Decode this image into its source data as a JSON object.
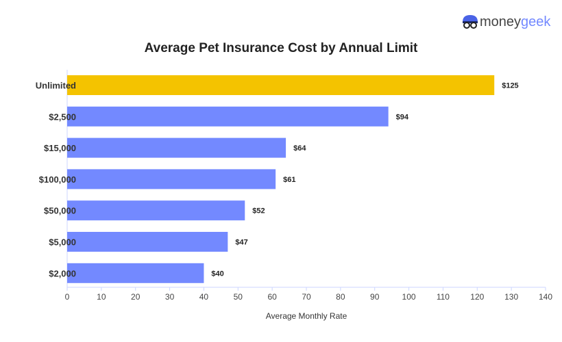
{
  "logo": {
    "part1": "money",
    "part2": "geek"
  },
  "chart_data": {
    "type": "bar",
    "orientation": "horizontal",
    "title": "Average Pet Insurance Cost by Annual Limit",
    "xlabel": "Average Monthly Rate",
    "ylabel": "",
    "categories": [
      "Unlimited",
      "$2,500",
      "$15,000",
      "$100,000",
      "$50,000",
      "$5,000",
      "$2,000"
    ],
    "values": [
      125,
      94,
      64,
      61,
      52,
      47,
      40
    ],
    "data_labels": [
      "$125",
      "$94",
      "$64",
      "$61",
      "$52",
      "$47",
      "$40"
    ],
    "highlight_color": "#F4C300",
    "bar_color": "#7389FF",
    "xlim": [
      0,
      140
    ],
    "xticks": [
      0,
      10,
      20,
      30,
      40,
      50,
      60,
      70,
      80,
      90,
      100,
      110,
      120,
      130,
      140
    ],
    "grid": false,
    "legend": "none"
  }
}
